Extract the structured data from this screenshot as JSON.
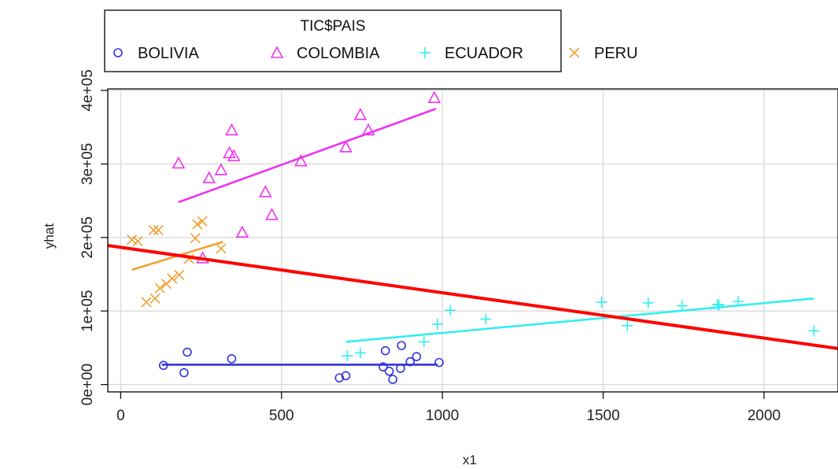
{
  "chart_data": {
    "type": "scatter",
    "xlabel": "x1",
    "ylabel": "yhat",
    "xlim": [
      -40,
      2230
    ],
    "ylim": [
      -10000,
      402000
    ],
    "x_ticks": [
      0,
      500,
      1000,
      1500,
      2000
    ],
    "x_tick_labels": [
      "0",
      "500",
      "1000",
      "1500",
      "2000"
    ],
    "y_ticks": [
      0,
      100000,
      200000,
      300000,
      400000
    ],
    "y_tick_labels": [
      "0e+00",
      "1e+05",
      "2e+05",
      "3e+05",
      "4e+05"
    ],
    "grid": true,
    "legend": {
      "title": "TIC$PAIS",
      "placement": "top",
      "entries": [
        "BOLIVIA",
        "COLOMBIA",
        "ECUADOR",
        "PERU"
      ]
    },
    "series": [
      {
        "name": "BOLIVIA",
        "marker": "circle",
        "color": "#3333dd",
        "points": [
          [
            133,
            26000
          ],
          [
            197,
            16000
          ],
          [
            207,
            44000
          ],
          [
            345,
            35000
          ],
          [
            680,
            9000
          ],
          [
            700,
            12000
          ],
          [
            816,
            24000
          ],
          [
            823,
            46000
          ],
          [
            835,
            18000
          ],
          [
            846,
            7000
          ],
          [
            870,
            22000
          ],
          [
            873,
            53000
          ],
          [
            900,
            31000
          ],
          [
            920,
            38000
          ],
          [
            990,
            30000
          ]
        ],
        "fit": [
          [
            128,
            27000
          ],
          [
            985,
            27000
          ]
        ]
      },
      {
        "name": "COLOMBIA",
        "marker": "triangle",
        "color": "#ee33ee",
        "points": [
          [
            180,
            301000
          ],
          [
            255,
            172000
          ],
          [
            275,
            281000
          ],
          [
            312,
            292000
          ],
          [
            338,
            315000
          ],
          [
            345,
            346000
          ],
          [
            352,
            311000
          ],
          [
            378,
            207000
          ],
          [
            450,
            262000
          ],
          [
            470,
            231000
          ],
          [
            560,
            304000
          ],
          [
            700,
            323000
          ],
          [
            745,
            367000
          ],
          [
            770,
            346000
          ],
          [
            975,
            390000
          ]
        ],
        "fit": [
          [
            180,
            248000
          ],
          [
            980,
            375000
          ]
        ]
      },
      {
        "name": "ECUADOR",
        "marker": "plus",
        "color": "#33eeee",
        "points": [
          [
            705,
            39000
          ],
          [
            745,
            43000
          ],
          [
            943,
            58000
          ],
          [
            985,
            82000
          ],
          [
            1025,
            101000
          ],
          [
            1135,
            89000
          ],
          [
            1495,
            112000
          ],
          [
            1575,
            80000
          ],
          [
            1640,
            111000
          ],
          [
            1745,
            107000
          ],
          [
            1855,
            109000
          ],
          [
            1860,
            108000
          ],
          [
            1920,
            113000
          ],
          [
            2155,
            73000
          ]
        ],
        "fit": [
          [
            700,
            58000
          ],
          [
            2155,
            117000
          ]
        ]
      },
      {
        "name": "PERU",
        "marker": "x",
        "color": "#f0a030",
        "points": [
          [
            35,
            197000
          ],
          [
            53,
            195000
          ],
          [
            80,
            112000
          ],
          [
            102,
            210000
          ],
          [
            107,
            117000
          ],
          [
            117,
            210000
          ],
          [
            122,
            131000
          ],
          [
            142,
            137000
          ],
          [
            160,
            144000
          ],
          [
            182,
            149000
          ],
          [
            212,
            171000
          ],
          [
            232,
            199000
          ],
          [
            238,
            218000
          ],
          [
            254,
            222000
          ],
          [
            312,
            185000
          ]
        ],
        "fit": [
          [
            35,
            156000
          ],
          [
            318,
            194000
          ]
        ]
      }
    ],
    "overall_fit": {
      "color": "#ff0000",
      "points": [
        [
          -40,
          189000
        ],
        [
          2230,
          49000
        ]
      ]
    }
  }
}
